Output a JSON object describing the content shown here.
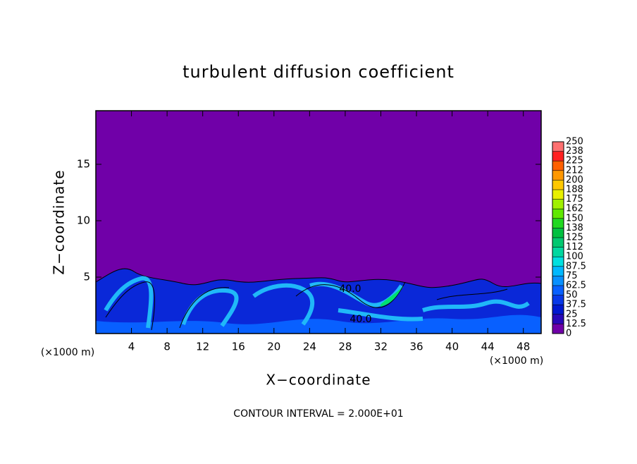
{
  "chart_data": {
    "type": "contour",
    "title": "turbulent diffusion coefficient",
    "x_label": "X−coordinate",
    "y_label": "Z−coordinate",
    "x_unit_left": "(×1000 m)",
    "x_unit_right": "(×1000 m)",
    "footer": "CONTOUR INTERVAL = 2.000E+01",
    "contour_labels": [
      "40.0",
      "40.0"
    ],
    "xlim": [
      0,
      50
    ],
    "xticks": [
      4,
      8,
      12,
      16,
      20,
      24,
      28,
      32,
      36,
      40,
      44,
      48
    ],
    "ylim": [
      0,
      19.75
    ],
    "yticks": [
      5,
      10,
      15
    ],
    "colorbar_ticks": [
      0,
      12.5,
      25,
      37.5,
      50,
      62.5,
      75,
      87.5,
      100,
      {
        "value": 112.5,
        "label": "112"
      },
      125,
      {
        "value": 137.5,
        "label": "138"
      },
      150,
      {
        "value": 162.5,
        "label": "162"
      },
      175,
      {
        "value": 187.5,
        "label": "188"
      },
      200,
      {
        "value": 212.5,
        "label": "212"
      },
      225,
      {
        "value": 237.5,
        "label": "238"
      },
      250
    ],
    "colorbar_colors": [
      "#7000a8",
      "#2808b8",
      "#0018d0",
      "#0838e8",
      "#0860ff",
      "#0890ff",
      "#00b8ff",
      "#00e0e0",
      "#00d8a0",
      "#00c870",
      "#00c040",
      "#20d820",
      "#60e800",
      "#a0f000",
      "#e8f000",
      "#ffc800",
      "#ff9800",
      "#ff6000",
      "#ff2020",
      "#ff7070"
    ]
  }
}
